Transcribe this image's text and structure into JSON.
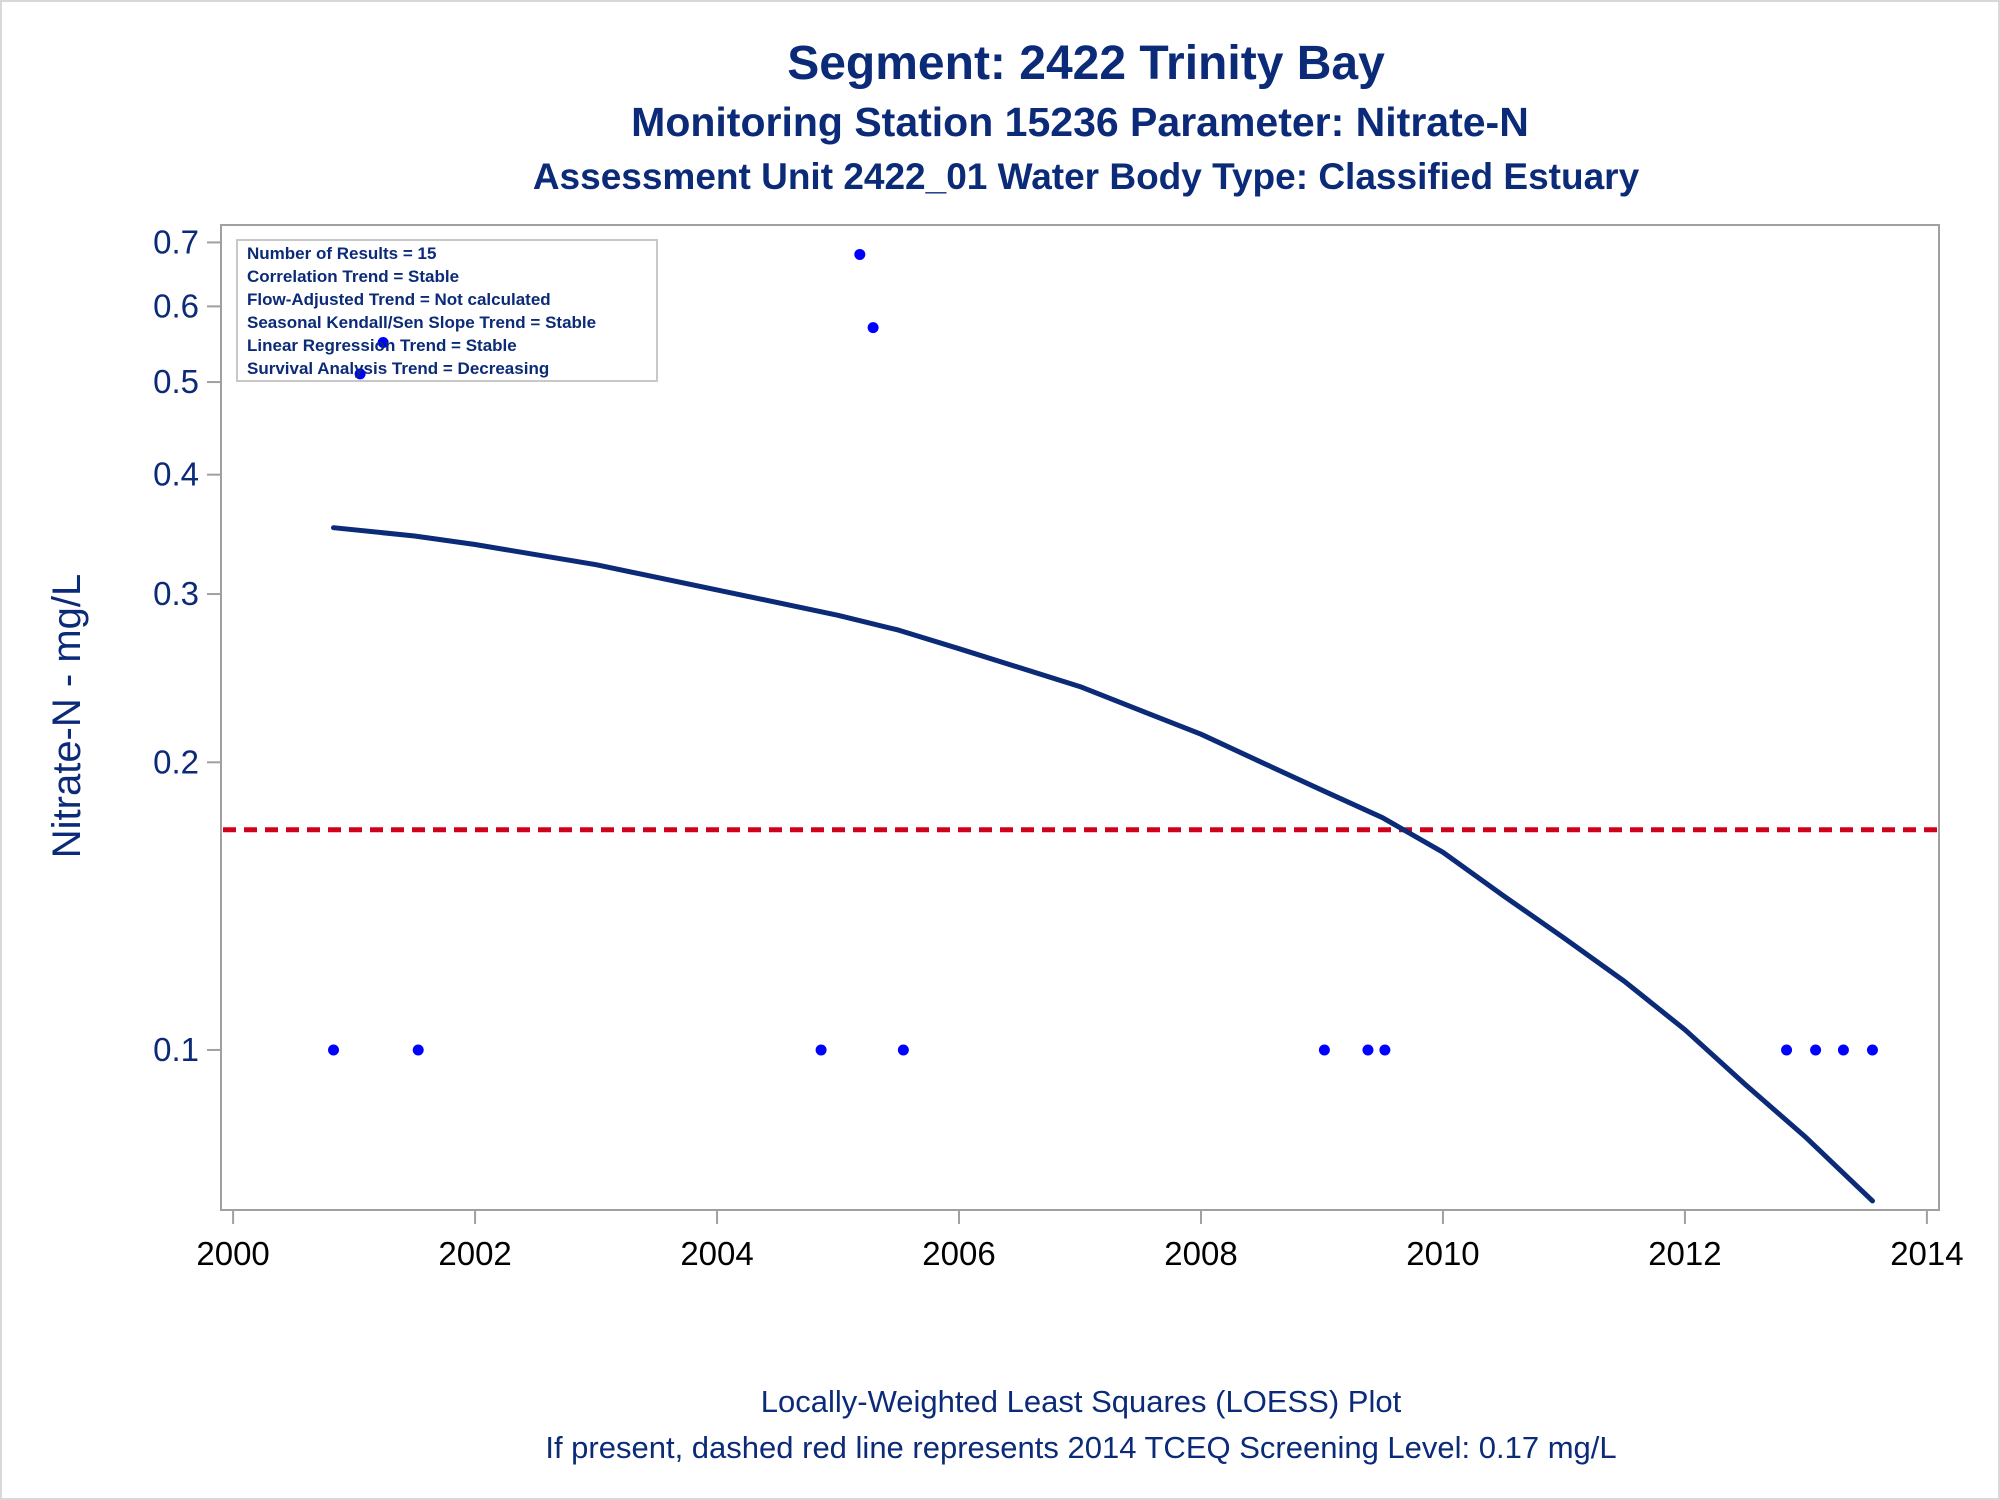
{
  "titles": {
    "line1": "Segment: 2422  Trinity Bay",
    "line2": "Monitoring Station 15236 Parameter: Nitrate-N",
    "line3": "Assessment Unit 2422_01   Water Body Type: Classified Estuary"
  },
  "legend": [
    "Number of Results = 15",
    "Correlation Trend = Stable",
    "Flow-Adjusted Trend = Not calculated",
    "Seasonal Kendall/Sen Slope Trend = Stable",
    "Linear Regression Trend = Stable",
    "Survival Analysis Trend = Decreasing"
  ],
  "footnotes": {
    "line1": "Locally-Weighted Least Squares (LOESS) Plot",
    "line2": "If present, dashed red line represents 2014 TCEQ Screening Level: 0.17 mg/L"
  },
  "colors": {
    "title": "#0b2a78",
    "points": "#0000ff",
    "loess": "#0b2a78",
    "screening": "#d0021b",
    "axis": "#a0a0a0"
  },
  "chart_data": {
    "type": "scatter",
    "xlabel": "",
    "ylabel": "Nitrate-N - mg/L",
    "yscale": "log",
    "xlim": [
      1999.9,
      2014.1
    ],
    "ylim": [
      0.068,
      0.73
    ],
    "xticks": [
      2000,
      2002,
      2004,
      2006,
      2008,
      2010,
      2012,
      2014
    ],
    "yticks": [
      0.1,
      0.2,
      0.3,
      0.4,
      0.5,
      0.6,
      0.7
    ],
    "ytick_labels": [
      "0.1",
      "0.2",
      "0.3",
      "0.4",
      "0.5",
      "0.6",
      "0.7"
    ],
    "grid": false,
    "legend_position": "top-left",
    "series": [
      {
        "type": "scatter",
        "x": [
          2000.83,
          2001.05,
          2001.24,
          2001.53,
          2004.86,
          2005.18,
          2005.29,
          2005.54,
          2009.02,
          2009.38,
          2009.52,
          2012.84,
          2013.08,
          2013.31,
          2013.55
        ],
        "y": [
          0.1,
          0.51,
          0.55,
          0.1,
          0.1,
          0.68,
          0.57,
          0.1,
          0.1,
          0.1,
          0.1,
          0.1,
          0.1,
          0.1,
          0.1
        ]
      },
      {
        "type": "line",
        "x": [
          2000.83,
          2001.5,
          2002.0,
          2003.0,
          2004.0,
          2005.0,
          2005.5,
          2006.0,
          2007.0,
          2008.0,
          2008.5,
          2009.0,
          2009.5,
          2010.0,
          2010.5,
          2011.0,
          2011.5,
          2012.0,
          2012.5,
          2013.0,
          2013.3,
          2013.55
        ],
        "y": [
          0.352,
          0.345,
          0.338,
          0.322,
          0.303,
          0.285,
          0.275,
          0.263,
          0.24,
          0.214,
          0.2,
          0.187,
          0.175,
          0.161,
          0.145,
          0.131,
          0.118,
          0.105,
          0.092,
          0.081,
          0.0745,
          0.0695
        ]
      }
    ],
    "reference_line": {
      "y": 0.17,
      "style": "dashed"
    }
  }
}
